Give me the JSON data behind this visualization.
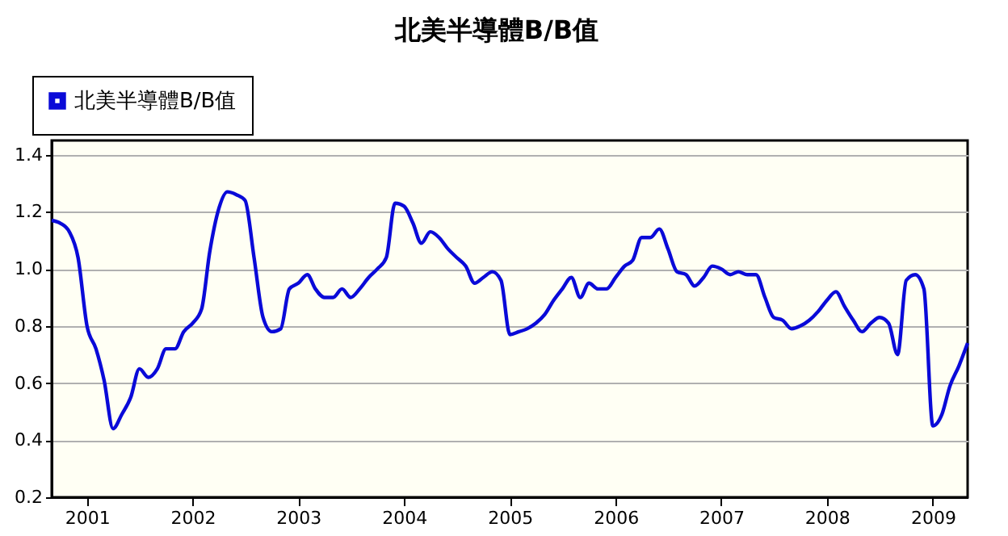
{
  "chart_data": {
    "type": "line",
    "title": "北美半導體B/B值",
    "x": [
      "2000-09",
      "2000-10",
      "2000-11",
      "2000-12",
      "2001-01",
      "2001-02",
      "2001-03",
      "2001-04",
      "2001-05",
      "2001-06",
      "2001-07",
      "2001-08",
      "2001-09",
      "2001-10",
      "2001-11",
      "2001-12",
      "2002-01",
      "2002-02",
      "2002-03",
      "2002-04",
      "2002-05",
      "2002-06",
      "2002-07",
      "2002-08",
      "2002-09",
      "2002-10",
      "2002-11",
      "2002-12",
      "2003-01",
      "2003-02",
      "2003-03",
      "2003-04",
      "2003-05",
      "2003-06",
      "2003-07",
      "2003-08",
      "2003-09",
      "2003-10",
      "2003-11",
      "2003-12",
      "2004-01",
      "2004-02",
      "2004-03",
      "2004-04",
      "2004-05",
      "2004-06",
      "2004-07",
      "2004-08",
      "2004-09",
      "2004-10",
      "2004-11",
      "2004-12",
      "2005-01",
      "2005-02",
      "2005-03",
      "2005-04",
      "2005-05",
      "2005-06",
      "2005-07",
      "2005-08",
      "2005-09",
      "2005-10",
      "2005-11",
      "2005-12",
      "2006-01",
      "2006-02",
      "2006-03",
      "2006-04",
      "2006-05",
      "2006-06",
      "2006-07",
      "2006-08",
      "2006-09",
      "2006-10",
      "2006-11",
      "2006-12",
      "2007-01",
      "2007-02",
      "2007-03",
      "2007-04",
      "2007-05",
      "2007-06",
      "2007-07",
      "2007-08",
      "2007-09",
      "2007-10",
      "2007-11",
      "2007-12",
      "2008-01",
      "2008-02",
      "2008-03",
      "2008-04",
      "2008-05",
      "2008-06",
      "2008-07",
      "2008-08",
      "2008-09",
      "2008-10",
      "2008-11",
      "2008-12",
      "2009-01",
      "2009-02",
      "2009-03",
      "2009-04",
      "2009-05"
    ],
    "series": [
      {
        "name": "北美半導體B/B值",
        "color": "#0a0ad8",
        "values": [
          1.17,
          1.16,
          1.13,
          1.04,
          0.8,
          0.72,
          0.61,
          0.44,
          0.49,
          0.55,
          0.65,
          0.62,
          0.65,
          0.72,
          0.72,
          0.78,
          0.81,
          0.86,
          1.06,
          1.21,
          1.27,
          1.26,
          1.24,
          1.04,
          0.83,
          0.78,
          0.79,
          0.93,
          0.95,
          0.98,
          0.93,
          0.9,
          0.9,
          0.93,
          0.9,
          0.93,
          0.97,
          1.0,
          1.04,
          1.23,
          1.22,
          1.16,
          1.09,
          1.13,
          1.11,
          1.07,
          1.04,
          1.01,
          0.95,
          0.97,
          0.99,
          0.96,
          0.77,
          0.78,
          0.79,
          0.81,
          0.84,
          0.89,
          0.93,
          0.97,
          0.9,
          0.95,
          0.93,
          0.93,
          0.97,
          1.01,
          1.03,
          1.11,
          1.11,
          1.14,
          1.07,
          0.99,
          0.98,
          0.94,
          0.97,
          1.01,
          1.0,
          0.98,
          0.99,
          0.98,
          0.98,
          0.9,
          0.83,
          0.82,
          0.79,
          0.8,
          0.82,
          0.85,
          0.89,
          0.92,
          0.87,
          0.82,
          0.78,
          0.81,
          0.83,
          0.81,
          0.7,
          0.96,
          0.98,
          0.93,
          0.45,
          0.49,
          0.59,
          0.66,
          0.74
        ]
      }
    ],
    "xlim": [
      "2000-09",
      "2009-05"
    ],
    "xticks": [
      "2001",
      "2002",
      "2003",
      "2004",
      "2005",
      "2006",
      "2007",
      "2008",
      "2009"
    ],
    "ylim": [
      0.2,
      1.45
    ],
    "yticks": [
      0.2,
      0.4,
      0.6,
      0.8,
      {
        "value": 1.0,
        "label": "1.0"
      },
      1.2,
      1.4
    ],
    "grid": "y",
    "legend": "top left",
    "line_style": "solid",
    "marker": "none"
  }
}
